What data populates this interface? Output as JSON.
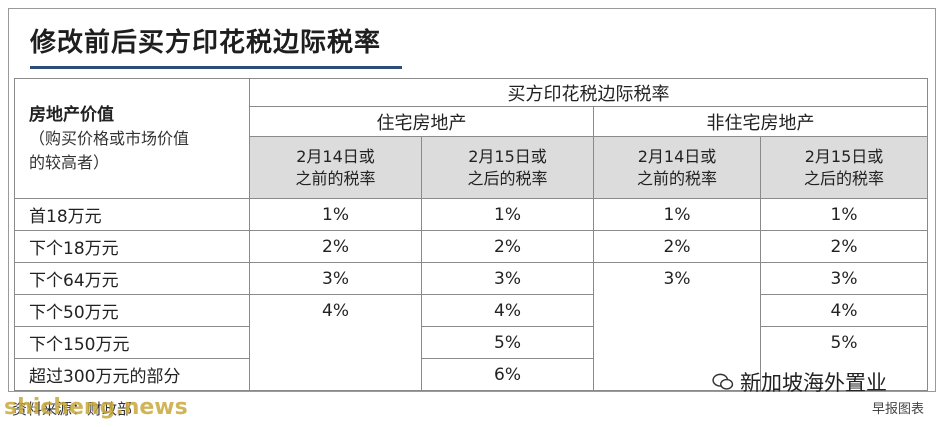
{
  "title": "修改前后买方印花税边际税率",
  "table": {
    "header_main": "买方印花税边际税率",
    "row_label": {
      "bold": "房地产价值",
      "note_line1": "（购买价格或市场价值",
      "note_line2": "的较高者）"
    },
    "group_residential": "住宅房地产",
    "group_nonresidential": "非住宅房地产",
    "col_before": [
      "2月14日或",
      "之前的税率"
    ],
    "col_after": [
      "2月15日或",
      "之后的税率"
    ],
    "rows": [
      {
        "tier": "首18万元",
        "res_before": "1%",
        "res_after": "1%",
        "non_before": "1%",
        "non_after": "1%"
      },
      {
        "tier": "下个18万元",
        "res_before": "2%",
        "res_after": "2%",
        "non_before": "2%",
        "non_after": "2%"
      },
      {
        "tier": "下个64万元",
        "res_before": "3%",
        "res_after": "3%",
        "non_before": "3%",
        "non_after": "3%"
      },
      {
        "tier": "下个50万元",
        "res_before": "4%",
        "res_after": "4%",
        "non_before": "",
        "non_after": "4%"
      },
      {
        "tier": "下个150万元",
        "res_before": "",
        "res_after": "5%",
        "non_before": "",
        "non_after": "5%"
      },
      {
        "tier": "超过300万元的部分",
        "res_before": "",
        "res_after": "6%",
        "non_before": "",
        "non_after": ""
      }
    ]
  },
  "source": "资料来源：财政部",
  "credit": "早报图表",
  "watermark": "新加坡海外置业",
  "footmark": "shicheng.news"
}
